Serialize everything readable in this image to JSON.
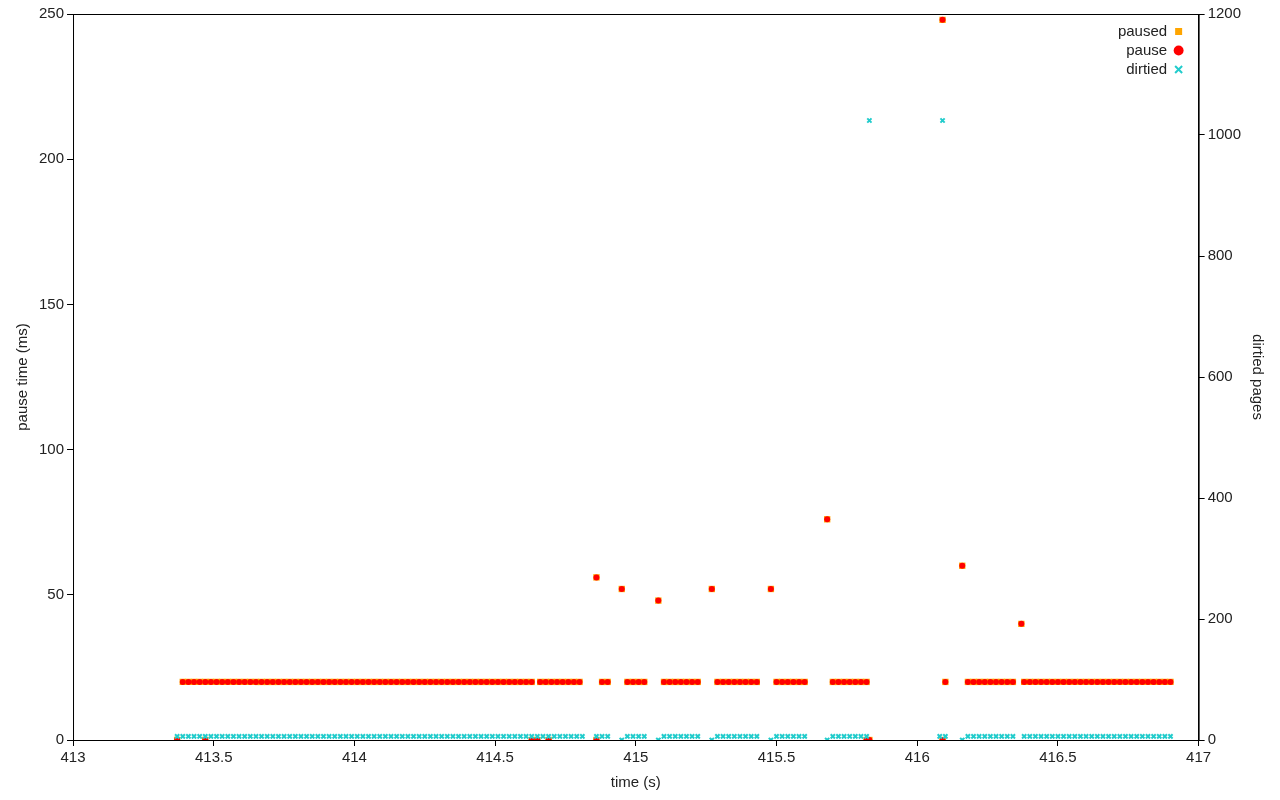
{
  "chart_data": {
    "type": "scatter",
    "xlabel": "time (s)",
    "ylabel": "pause time (ms)",
    "y2label": "dirtied pages",
    "xlim": [
      413,
      417
    ],
    "xticks": [
      413,
      413.5,
      414,
      414.5,
      415,
      415.5,
      416,
      416.5,
      417
    ],
    "ylim": [
      0,
      250
    ],
    "yticks": [
      0,
      50,
      100,
      150,
      200,
      250
    ],
    "y2lim": [
      0,
      1200
    ],
    "y2ticks": [
      0,
      200,
      400,
      600,
      800,
      1000,
      1200
    ],
    "grid": false,
    "legend": "top right",
    "series": [
      {
        "name": "paused",
        "color": "#ffa500",
        "marker": "square",
        "x": [
          413.39,
          413.41,
          413.43,
          413.45,
          413.47,
          413.49,
          413.51,
          413.53,
          413.55,
          413.57,
          413.59,
          413.61,
          413.63,
          413.65,
          413.67,
          413.69,
          413.71,
          413.73,
          413.75,
          413.77,
          413.79,
          413.81,
          413.83,
          413.85,
          413.87,
          413.89,
          413.91,
          413.93,
          413.95,
          413.97,
          413.99,
          414.01,
          414.03,
          414.05,
          414.07,
          414.09,
          414.11,
          414.13,
          414.15,
          414.17,
          414.19,
          414.21,
          414.23,
          414.25,
          414.27,
          414.29,
          414.31,
          414.33,
          414.35,
          414.37,
          414.39,
          414.41,
          414.43,
          414.45,
          414.47,
          414.49,
          414.51,
          414.53,
          414.55,
          414.57,
          414.59,
          414.61,
          414.63,
          414.66,
          414.68,
          414.7,
          414.72,
          414.74,
          414.76,
          414.78,
          414.8,
          414.88,
          414.9,
          414.97,
          414.99,
          415.01,
          415.03,
          415.1,
          415.12,
          415.14,
          415.16,
          415.18,
          415.2,
          415.22,
          415.29,
          415.31,
          415.33,
          415.35,
          415.37,
          415.39,
          415.41,
          415.43,
          415.5,
          415.52,
          415.54,
          415.56,
          415.58,
          415.6,
          415.7,
          415.72,
          415.74,
          415.76,
          415.78,
          415.8,
          415.82,
          416.1,
          416.18,
          416.2,
          416.22,
          416.24,
          416.26,
          416.28,
          416.3,
          416.32,
          416.34,
          416.38,
          416.4,
          416.42,
          416.44,
          416.46,
          416.48,
          416.5,
          416.52,
          416.54,
          416.56,
          416.58,
          416.6,
          416.62,
          416.64,
          416.66,
          416.68,
          416.7,
          416.72,
          416.74,
          416.76,
          416.78,
          416.8,
          416.82,
          416.84,
          416.86,
          416.88,
          416.9,
          414.86,
          414.95,
          415.08,
          415.27,
          415.48,
          415.68,
          416.09,
          416.16,
          416.37,
          413.37,
          413.47,
          414.63,
          414.65,
          414.69,
          414.86,
          415.82,
          415.83,
          416.09
        ],
        "values": [
          20,
          20,
          20,
          20,
          20,
          20,
          20,
          20,
          20,
          20,
          20,
          20,
          20,
          20,
          20,
          20,
          20,
          20,
          20,
          20,
          20,
          20,
          20,
          20,
          20,
          20,
          20,
          20,
          20,
          20,
          20,
          20,
          20,
          20,
          20,
          20,
          20,
          20,
          20,
          20,
          20,
          20,
          20,
          20,
          20,
          20,
          20,
          20,
          20,
          20,
          20,
          20,
          20,
          20,
          20,
          20,
          20,
          20,
          20,
          20,
          20,
          20,
          20,
          20,
          20,
          20,
          20,
          20,
          20,
          20,
          20,
          20,
          20,
          20,
          20,
          20,
          20,
          20,
          20,
          20,
          20,
          20,
          20,
          20,
          20,
          20,
          20,
          20,
          20,
          20,
          20,
          20,
          20,
          20,
          20,
          20,
          20,
          20,
          20,
          20,
          20,
          20,
          20,
          20,
          20,
          20,
          20,
          20,
          20,
          20,
          20,
          20,
          20,
          20,
          20,
          20,
          20,
          20,
          20,
          20,
          20,
          20,
          20,
          20,
          20,
          20,
          20,
          20,
          20,
          20,
          20,
          20,
          20,
          20,
          20,
          20,
          20,
          20,
          20,
          20,
          20,
          20,
          56,
          52,
          48,
          52,
          52,
          76,
          248,
          60,
          40,
          0,
          0,
          0,
          0,
          0,
          0,
          0,
          0,
          0
        ]
      },
      {
        "name": "pause",
        "color": "#ff0000",
        "marker": "circle",
        "x": [
          413.39,
          413.41,
          413.43,
          413.45,
          413.47,
          413.49,
          413.51,
          413.53,
          413.55,
          413.57,
          413.59,
          413.61,
          413.63,
          413.65,
          413.67,
          413.69,
          413.71,
          413.73,
          413.75,
          413.77,
          413.79,
          413.81,
          413.83,
          413.85,
          413.87,
          413.89,
          413.91,
          413.93,
          413.95,
          413.97,
          413.99,
          414.01,
          414.03,
          414.05,
          414.07,
          414.09,
          414.11,
          414.13,
          414.15,
          414.17,
          414.19,
          414.21,
          414.23,
          414.25,
          414.27,
          414.29,
          414.31,
          414.33,
          414.35,
          414.37,
          414.39,
          414.41,
          414.43,
          414.45,
          414.47,
          414.49,
          414.51,
          414.53,
          414.55,
          414.57,
          414.59,
          414.61,
          414.63,
          414.66,
          414.68,
          414.7,
          414.72,
          414.74,
          414.76,
          414.78,
          414.8,
          414.88,
          414.9,
          414.97,
          414.99,
          415.01,
          415.03,
          415.1,
          415.12,
          415.14,
          415.16,
          415.18,
          415.2,
          415.22,
          415.29,
          415.31,
          415.33,
          415.35,
          415.37,
          415.39,
          415.41,
          415.43,
          415.5,
          415.52,
          415.54,
          415.56,
          415.58,
          415.6,
          415.7,
          415.72,
          415.74,
          415.76,
          415.78,
          415.8,
          415.82,
          416.1,
          416.18,
          416.2,
          416.22,
          416.24,
          416.26,
          416.28,
          416.3,
          416.32,
          416.34,
          416.38,
          416.4,
          416.42,
          416.44,
          416.46,
          416.48,
          416.5,
          416.52,
          416.54,
          416.56,
          416.58,
          416.6,
          416.62,
          416.64,
          416.66,
          416.68,
          416.7,
          416.72,
          416.74,
          416.76,
          416.78,
          416.8,
          416.82,
          416.84,
          416.86,
          416.88,
          416.9,
          414.86,
          414.95,
          415.08,
          415.27,
          415.48,
          415.68,
          416.09,
          416.16,
          416.37,
          413.37,
          413.47,
          414.63,
          414.65,
          414.69,
          414.86,
          415.82,
          415.83,
          416.09
        ],
        "values": [
          20,
          20,
          20,
          20,
          20,
          20,
          20,
          20,
          20,
          20,
          20,
          20,
          20,
          20,
          20,
          20,
          20,
          20,
          20,
          20,
          20,
          20,
          20,
          20,
          20,
          20,
          20,
          20,
          20,
          20,
          20,
          20,
          20,
          20,
          20,
          20,
          20,
          20,
          20,
          20,
          20,
          20,
          20,
          20,
          20,
          20,
          20,
          20,
          20,
          20,
          20,
          20,
          20,
          20,
          20,
          20,
          20,
          20,
          20,
          20,
          20,
          20,
          20,
          20,
          20,
          20,
          20,
          20,
          20,
          20,
          20,
          20,
          20,
          20,
          20,
          20,
          20,
          20,
          20,
          20,
          20,
          20,
          20,
          20,
          20,
          20,
          20,
          20,
          20,
          20,
          20,
          20,
          20,
          20,
          20,
          20,
          20,
          20,
          20,
          20,
          20,
          20,
          20,
          20,
          20,
          20,
          20,
          20,
          20,
          20,
          20,
          20,
          20,
          20,
          20,
          20,
          20,
          20,
          20,
          20,
          20,
          20,
          20,
          20,
          20,
          20,
          20,
          20,
          20,
          20,
          20,
          20,
          20,
          20,
          20,
          20,
          20,
          20,
          20,
          20,
          20,
          20,
          56,
          52,
          48,
          52,
          52,
          76,
          248,
          60,
          40,
          0,
          0,
          0,
          0,
          0,
          0,
          0,
          0,
          0
        ]
      },
      {
        "name": "dirtied",
        "color": "#22cccc",
        "marker": "cross",
        "axis": "y2",
        "x": [
          413.37,
          413.39,
          413.41,
          413.43,
          413.45,
          413.47,
          413.49,
          413.51,
          413.53,
          413.55,
          413.57,
          413.59,
          413.61,
          413.63,
          413.65,
          413.67,
          413.69,
          413.71,
          413.73,
          413.75,
          413.77,
          413.79,
          413.81,
          413.83,
          413.85,
          413.87,
          413.89,
          413.91,
          413.93,
          413.95,
          413.97,
          413.99,
          414.01,
          414.03,
          414.05,
          414.07,
          414.09,
          414.11,
          414.13,
          414.15,
          414.17,
          414.19,
          414.21,
          414.23,
          414.25,
          414.27,
          414.29,
          414.31,
          414.33,
          414.35,
          414.37,
          414.39,
          414.41,
          414.43,
          414.45,
          414.47,
          414.49,
          414.51,
          414.53,
          414.55,
          414.57,
          414.59,
          414.61,
          414.63,
          414.65,
          414.67,
          414.69,
          414.71,
          414.73,
          414.75,
          414.77,
          414.79,
          414.81,
          414.86,
          414.88,
          414.9,
          414.97,
          414.99,
          415.01,
          415.03,
          415.1,
          415.12,
          415.14,
          415.16,
          415.18,
          415.2,
          415.22,
          415.29,
          415.31,
          415.33,
          415.35,
          415.37,
          415.39,
          415.41,
          415.43,
          415.5,
          415.52,
          415.54,
          415.56,
          415.58,
          415.6,
          415.7,
          415.72,
          415.74,
          415.76,
          415.78,
          415.8,
          415.82,
          416.08,
          416.1,
          416.18,
          416.2,
          416.22,
          416.24,
          416.26,
          416.28,
          416.3,
          416.32,
          416.34,
          416.38,
          416.4,
          416.42,
          416.44,
          416.46,
          416.48,
          416.5,
          416.52,
          416.54,
          416.56,
          416.58,
          416.6,
          416.62,
          416.64,
          416.66,
          416.68,
          416.7,
          416.72,
          416.74,
          416.76,
          416.78,
          416.8,
          416.82,
          416.84,
          416.86,
          416.88,
          416.9,
          414.95,
          415.08,
          415.27,
          415.48,
          415.68,
          416.16,
          415.83,
          416.09
        ],
        "values": [
          6,
          6,
          6,
          6,
          6,
          6,
          6,
          6,
          6,
          6,
          6,
          6,
          6,
          6,
          6,
          6,
          6,
          6,
          6,
          6,
          6,
          6,
          6,
          6,
          6,
          6,
          6,
          6,
          6,
          6,
          6,
          6,
          6,
          6,
          6,
          6,
          6,
          6,
          6,
          6,
          6,
          6,
          6,
          6,
          6,
          6,
          6,
          6,
          6,
          6,
          6,
          6,
          6,
          6,
          6,
          6,
          6,
          6,
          6,
          6,
          6,
          6,
          6,
          6,
          6,
          6,
          6,
          6,
          6,
          6,
          6,
          6,
          6,
          6,
          6,
          6,
          6,
          6,
          6,
          6,
          6,
          6,
          6,
          6,
          6,
          6,
          6,
          6,
          6,
          6,
          6,
          6,
          6,
          6,
          6,
          6,
          6,
          6,
          6,
          6,
          6,
          6,
          6,
          6,
          6,
          6,
          6,
          6,
          6,
          6,
          6,
          6,
          6,
          6,
          6,
          6,
          6,
          6,
          6,
          6,
          6,
          6,
          6,
          6,
          6,
          6,
          6,
          6,
          6,
          6,
          6,
          6,
          6,
          6,
          6,
          6,
          6,
          6,
          6,
          6,
          6,
          6,
          6,
          6,
          6,
          6,
          0,
          0,
          0,
          0,
          0,
          0,
          1024,
          1024
        ]
      }
    ]
  }
}
